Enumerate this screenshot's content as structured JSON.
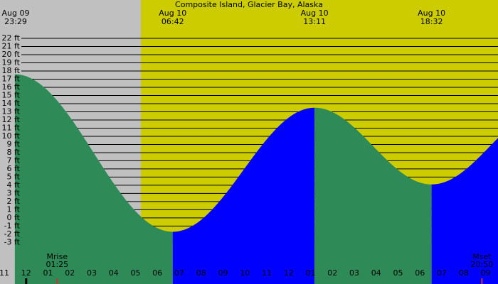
{
  "chart_data": {
    "type": "tide",
    "title": "Composite Island, Glacier Bay, Alaska",
    "extremes": [
      {
        "date": "Aug 09",
        "time": "23:29",
        "height": 17.6
      },
      {
        "date": "Aug 10",
        "time": "06:42",
        "height": -1.7
      },
      {
        "date": "Aug 10",
        "time": "13:11",
        "height": 13.5
      },
      {
        "date": "Aug 10",
        "time": "18:32",
        "height": 4.1
      }
    ],
    "hours": [
      "11",
      "12",
      "01",
      "02",
      "03",
      "04",
      "05",
      "06",
      "07",
      "08",
      "09",
      "10",
      "11",
      "12",
      "01",
      "02",
      "03",
      "04",
      "05",
      "06",
      "07",
      "08",
      "09"
    ],
    "ylim": [
      -8.1,
      26.7
    ],
    "yticks": [
      {
        "value": 22,
        "label": "22 ft"
      },
      {
        "value": 21,
        "label": "21 ft"
      },
      {
        "value": 20,
        "label": "20 ft"
      },
      {
        "value": 19,
        "label": "19 ft"
      },
      {
        "value": 18,
        "label": "18 ft"
      },
      {
        "value": 17,
        "label": "17 ft"
      },
      {
        "value": 16,
        "label": "16 ft"
      },
      {
        "value": 15,
        "label": "15 ft"
      },
      {
        "value": 14,
        "label": "14 ft"
      },
      {
        "value": 13,
        "label": "13 ft"
      },
      {
        "value": 12,
        "label": "12 ft"
      },
      {
        "value": 11,
        "label": "11 ft"
      },
      {
        "value": 10,
        "label": "10 ft"
      },
      {
        "value": 9,
        "label": "9 ft"
      },
      {
        "value": 8,
        "label": "8 ft"
      },
      {
        "value": 7,
        "label": "7 ft"
      },
      {
        "value": 6,
        "label": "6 ft"
      },
      {
        "value": 5,
        "label": "5 ft"
      },
      {
        "value": 4,
        "label": "4 ft"
      },
      {
        "value": 3,
        "label": "3 ft"
      },
      {
        "value": 2,
        "label": "2 ft"
      },
      {
        "value": 1,
        "label": "1 ft"
      },
      {
        "value": 0,
        "label": "0 ft"
      },
      {
        "value": -1,
        "label": "-1 ft"
      },
      {
        "value": -2,
        "label": "-2 ft"
      },
      {
        "value": -3,
        "label": "-3 ft"
      }
    ],
    "moon": [
      {
        "label": "Mrise",
        "time": "01:25"
      },
      {
        "label": "Mset",
        "time": "20:50"
      }
    ],
    "falling_color": "#2e8b57",
    "rising_color": "#0000ff"
  }
}
